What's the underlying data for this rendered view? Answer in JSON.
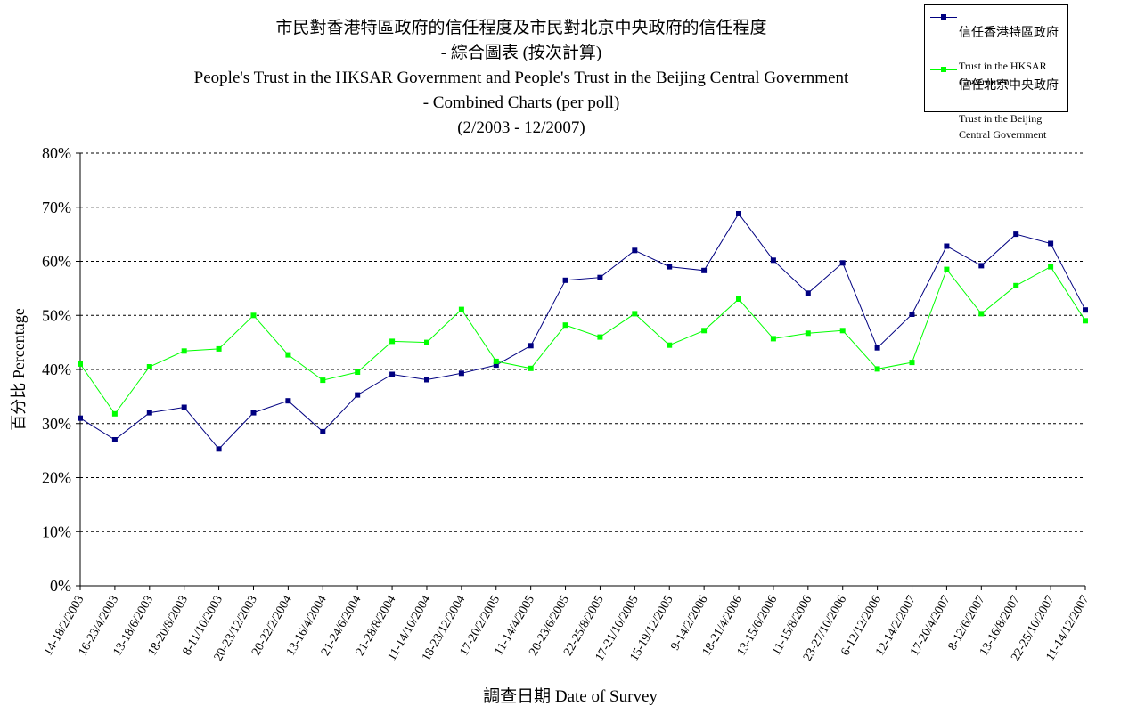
{
  "chart_data": {
    "type": "line",
    "title_zh": "市民對香港特區政府的信任程度及市民對北京中央政府的信任程度",
    "subtitle_zh": "- 綜合圖表 (按次計算)",
    "title_en": "People's Trust in the HKSAR Government and People's Trust in the Beijing Central Government",
    "subtitle_en": "- Combined Charts (per poll)",
    "period": "(2/2003 - 12/2007)",
    "xlabel": "調查日期 Date of Survey",
    "ylabel": "百分比 Percentage",
    "ylim": [
      0,
      80
    ],
    "yticks": [
      "0%",
      "10%",
      "20%",
      "30%",
      "40%",
      "50%",
      "60%",
      "70%",
      "80%"
    ],
    "grid": true,
    "legend_position": "top-right",
    "categories": [
      "14-18/2/2003",
      "16-23/4/2003",
      "13-18/6/2003",
      "18-20/8/2003",
      "8-11/10/2003",
      "20-23/12/2003",
      "20-22/2/2004",
      "13-16/4/2004",
      "21-24/6/2004",
      "21-28/8/2004",
      "11-14/10/2004",
      "18-23/12/2004",
      "17-20/2/2005",
      "11-14/4/2005",
      "20-23/6/2005",
      "22-25/8/2005",
      "17-21/10/2005",
      "15-19/12/2005",
      "9-14/2/2006",
      "18-21/4/2006",
      "13-15/6/2006",
      "11-15/8/2006",
      "23-27/10/2006",
      "6-12/12/2006",
      "12-14/2/2007",
      "17-20/4/2007",
      "8-12/6/2007",
      "13-16/8/2007",
      "22-25/10/2007",
      "11-14/12/2007"
    ],
    "series": [
      {
        "name_zh": "信任香港特區政府",
        "name_en": "Trust in the HKSAR\nGovernment",
        "color": "#000080",
        "values": [
          31.0,
          27.0,
          32.0,
          33.0,
          25.3,
          32.0,
          34.2,
          28.5,
          35.3,
          39.1,
          38.1,
          39.3,
          40.8,
          44.4,
          56.5,
          57.0,
          62.0,
          59.0,
          58.3,
          68.8,
          60.2,
          54.1,
          59.7,
          44.0,
          50.2,
          62.8,
          59.2,
          65.0,
          63.3,
          51.0
        ]
      },
      {
        "name_zh": "信任北京中央政府",
        "name_en": "Trust in the Beijing\nCentral Government",
        "color": "#00ff00",
        "values": [
          41.0,
          31.8,
          40.5,
          43.4,
          43.8,
          50.0,
          42.7,
          38.0,
          39.5,
          45.2,
          45.0,
          51.1,
          41.5,
          40.2,
          48.2,
          46.0,
          50.3,
          44.5,
          47.2,
          53.0,
          45.7,
          46.7,
          47.2,
          40.1,
          41.3,
          58.5,
          50.3,
          55.5,
          59.0,
          49.0
        ]
      }
    ]
  }
}
